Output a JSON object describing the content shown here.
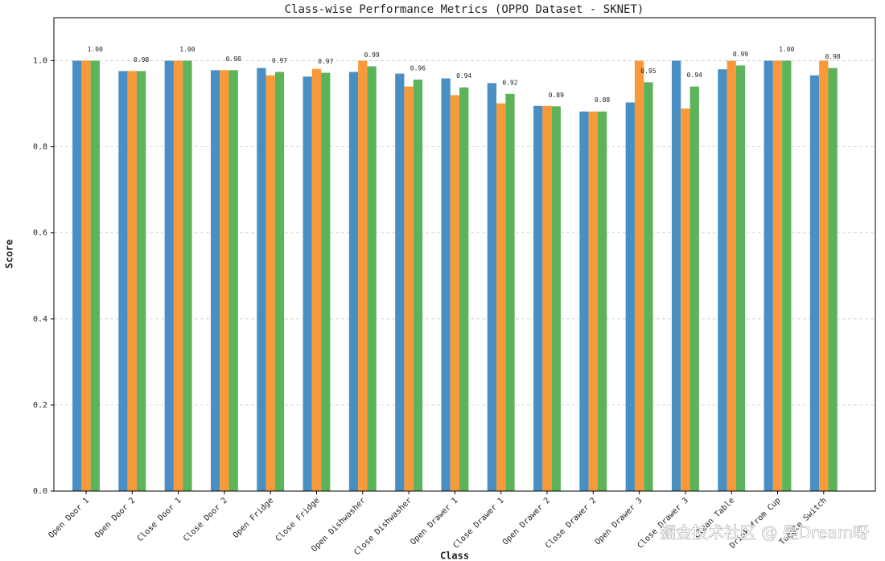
{
  "chart_data": {
    "type": "bar",
    "title": "Class-wise Performance Metrics (OPPO Dataset - SKNET)",
    "x_label": "Class",
    "y_label": "Score",
    "categories": [
      "Open Door 1",
      "Open Door 2",
      "Close Door 1",
      "Close Door 2",
      "Open Fridge",
      "Close Fridge",
      "Open Dishwasher",
      "Close Dishwasher",
      "Open Drawer 1",
      "Close Drawer 1",
      "Open Drawer 2",
      "Close Drawer 2",
      "Open Drawer 3",
      "Close Drawer 3",
      "Clean Table",
      "Drink from Cup",
      "Toggle Switch"
    ],
    "series": [
      {
        "color": "#4a8fc4",
        "values": [
          1,
          0.976,
          1,
          0.978,
          0.983,
          0.963,
          0.974,
          0.97,
          0.959,
          0.948,
          0.895,
          0.882,
          0.903,
          1,
          0.98,
          1,
          0.966
        ]
      },
      {
        "color": "#f99a3a",
        "values": [
          1,
          0.976,
          1,
          0.978,
          0.966,
          0.981,
          1,
          0.94,
          0.92,
          0.901,
          0.895,
          0.882,
          1,
          0.889,
          1,
          1,
          1
        ]
      },
      {
        "color": "#5cb35a",
        "values": [
          1,
          0.976,
          1,
          0.978,
          0.974,
          0.972,
          0.987,
          0.956,
          0.938,
          0.923,
          0.894,
          0.882,
          0.95,
          0.94,
          0.989,
          1,
          0.983
        ],
        "value_labels": [
          "1.00",
          "0.98",
          "1.00",
          "0.98",
          "0.97",
          "0.97",
          "0.99",
          "0.96",
          "0.94",
          "0.92",
          "0.89",
          "0.88",
          "0.95",
          "0.94",
          "0.99",
          "1.00",
          "0.98"
        ]
      }
    ],
    "ylim": [
      0,
      1.1
    ],
    "yticks": [
      {
        "value": 0,
        "label": "0.0"
      },
      0.2,
      0.4,
      0.6,
      0.8,
      {
        "value": 1,
        "label": "1.0"
      }
    ],
    "grid": true,
    "watermark": "掘金技术社区 @ 是Dream呀"
  }
}
